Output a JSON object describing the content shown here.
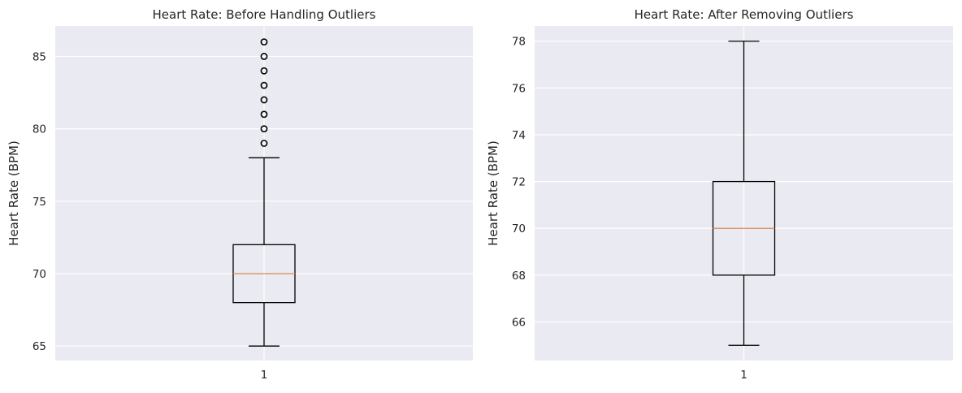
{
  "chart_data": [
    {
      "type": "box",
      "title": "Heart Rate: Before Handling Outliers",
      "xlabel": "",
      "ylabel": "Heart Rate (BPM)",
      "categories": [
        "1"
      ],
      "ylim": [
        64.0,
        87.1
      ],
      "yticks": [
        65,
        70,
        75,
        80,
        85
      ],
      "grid": true,
      "box": {
        "whisker_low": 65,
        "q1": 68,
        "median": 70,
        "q3": 72,
        "whisker_high": 78
      },
      "outliers": [
        79,
        80,
        81,
        82,
        83,
        84,
        85,
        86
      ]
    },
    {
      "type": "box",
      "title": "Heart Rate: After Removing Outliers",
      "xlabel": "",
      "ylabel": "Heart Rate (BPM)",
      "categories": [
        "1"
      ],
      "ylim": [
        64.35,
        78.65
      ],
      "yticks": [
        66,
        68,
        70,
        72,
        74,
        76,
        78
      ],
      "grid": true,
      "box": {
        "whisker_low": 65,
        "q1": 68,
        "median": 70,
        "q3": 72,
        "whisker_high": 78
      },
      "outliers": []
    }
  ],
  "colors": {
    "plot_background": "#eaeaf2",
    "grid": "#ffffff",
    "box": "#000000",
    "median": "#dd8452"
  }
}
